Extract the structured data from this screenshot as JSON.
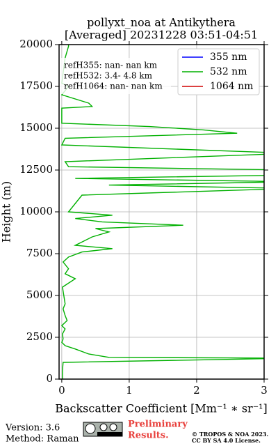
{
  "chart_data": {
    "type": "profile",
    "title": "pollyxt_noa at Antikythera",
    "subtitle": "[Averaged] 20231228 03:51-04:51",
    "x_label": "Backscatter Coefficient [Mm⁻¹ ∗ sr⁻¹]",
    "y_label": "Height (m)",
    "xlim": [
      -0.04,
      3
    ],
    "xticks": [
      0,
      1,
      2,
      3
    ],
    "ylim": [
      0,
      20000
    ],
    "yticks": [
      0,
      2500,
      5000,
      7500,
      10000,
      12500,
      15000,
      17500,
      20000
    ],
    "grid": true,
    "legend": "upper right",
    "annotations": [
      "refH355:  nan- nan km",
      "refH532:  3.4- 4.8 km",
      "refH1064:  nan- nan km"
    ],
    "y": [
      0,
      500,
      1000,
      1250,
      1300,
      1500,
      1800,
      2000,
      2200,
      2400,
      2700,
      3000,
      3200,
      3500,
      3800,
      4200,
      4500,
      5000,
      5500,
      6000,
      6300,
      6600,
      7000,
      7300,
      7600,
      7800,
      8000,
      8200,
      8500,
      8800,
      9000,
      9200,
      9400,
      9600,
      9800,
      10000,
      10500,
      11000,
      11400,
      11600,
      11800,
      12000,
      12200,
      12500,
      12700,
      13000,
      13500,
      14000,
      14400,
      14700,
      14900,
      15100,
      15300,
      16200,
      16300,
      16500,
      17000,
      17500,
      17700,
      19200,
      19900,
      20000
    ],
    "series": [
      {
        "name": "355 nm",
        "color": "#0000ff",
        "values": [
          null,
          null,
          null,
          null,
          null,
          null,
          null,
          null,
          null,
          null,
          null,
          null,
          null,
          null,
          null,
          null,
          null,
          null,
          null,
          null,
          null,
          null,
          null,
          null,
          null,
          null,
          null,
          null,
          null,
          null,
          null,
          null,
          null,
          null,
          null,
          null,
          null,
          null,
          null,
          null,
          null,
          null,
          null,
          null,
          null,
          null,
          null,
          null,
          null,
          null,
          null,
          null,
          null,
          null,
          null,
          null,
          null,
          null,
          null,
          null,
          null,
          null
        ]
      },
      {
        "name": "532 nm",
        "color": "#00b000",
        "values": [
          0.01,
          0.01,
          0.02,
          3.4,
          0.7,
          0.4,
          0.2,
          0.05,
          0.0,
          0.02,
          0.01,
          0.05,
          0.0,
          0.08,
          0.05,
          0.02,
          0.05,
          0.03,
          0.01,
          0.2,
          0.05,
          0.1,
          0.02,
          0.1,
          0.3,
          0.75,
          0.2,
          0.3,
          0.45,
          0.7,
          0.5,
          1.8,
          0.6,
          0.2,
          0.75,
          0.1,
          0.2,
          0.3,
          3.4,
          0.7,
          3.4,
          0.2,
          3.4,
          3.4,
          0.1,
          0.05,
          3.4,
          0.0,
          0.05,
          2.6,
          2.1,
          1.3,
          0.0,
          0.0,
          0.45,
          0.4,
          0.0,
          0.1,
          0.0,
          0.05,
          0.1,
          0.1
        ]
      },
      {
        "name": "1064 nm",
        "color": "#d00000",
        "values": [
          null,
          null,
          null,
          null,
          null,
          null,
          null,
          null,
          null,
          null,
          null,
          null,
          null,
          null,
          null,
          null,
          null,
          null,
          null,
          null,
          null,
          null,
          null,
          null,
          null,
          null,
          null,
          null,
          null,
          null,
          null,
          null,
          null,
          null,
          null,
          null,
          null,
          null,
          null,
          null,
          null,
          null,
          null,
          null,
          null,
          null,
          null,
          null,
          null,
          null,
          null,
          null,
          null,
          null,
          null,
          null,
          null,
          null,
          null,
          null,
          null,
          null
        ]
      }
    ]
  },
  "footer": {
    "version": "Version: 3.6",
    "method": "Method: Raman",
    "notice": "Preliminary Results.",
    "license": [
      "© TROPOS & NOA 2023.",
      "CC BY SA 4.0 License."
    ]
  }
}
